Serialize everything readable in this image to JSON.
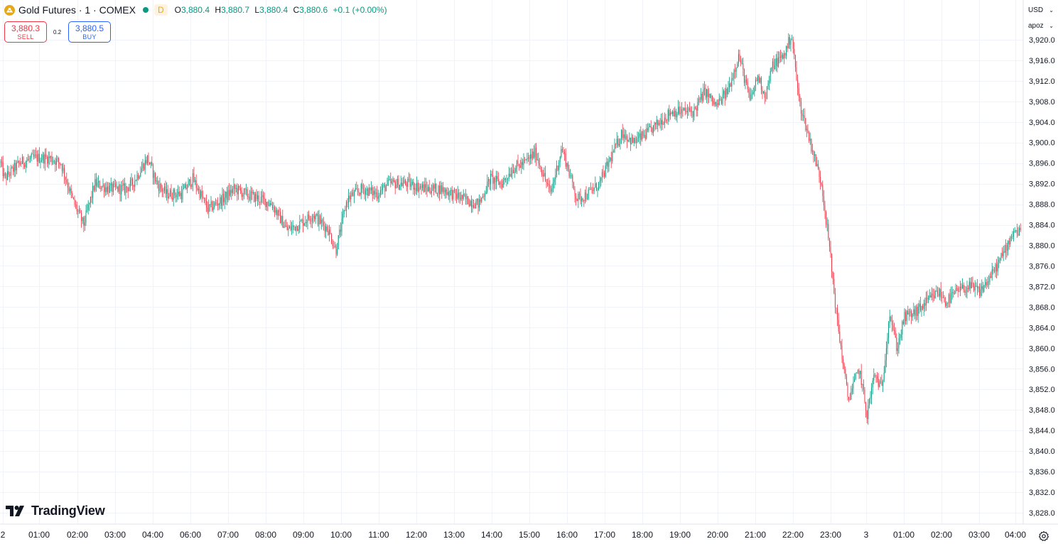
{
  "legend": {
    "title": "Gold Futures · 1 · COMEX",
    "timeframe_badge": "D",
    "open_key": "O",
    "open": "3,880.4",
    "high_key": "H",
    "high": "3,880.7",
    "low_key": "L",
    "low": "3,880.4",
    "close_key": "C",
    "close": "3,880.6",
    "change": "+0.1 (+0.00%)"
  },
  "trade": {
    "sell_price": "3,880.3",
    "sell_label": "SELL",
    "spread": "0.2",
    "buy_price": "3,880.5",
    "buy_label": "BUY"
  },
  "scale_controls": {
    "currency": "USD",
    "unit": "apoz"
  },
  "branding": {
    "logo_text": "TradingView"
  },
  "colors": {
    "up": "#089981",
    "down": "#f23645",
    "grid": "#f0f3fa",
    "text": "#131722",
    "brand_gold": "#e6a817"
  },
  "icons": {
    "symbol": "gold-bars-icon",
    "settings": "gear-icon",
    "logo": "tradingview-logo-icon"
  },
  "chart_data": {
    "type": "candlestick",
    "title": "Gold Futures · 1 · COMEX",
    "interval": "1 minute",
    "ylim": [
      3826,
      3922
    ],
    "y_ticks": [
      "3,828.0",
      "3,832.0",
      "3,836.0",
      "3,840.0",
      "3,844.0",
      "3,848.0",
      "3,852.0",
      "3,856.0",
      "3,860.0",
      "3,864.0",
      "3,868.0",
      "3,872.0",
      "3,876.0",
      "3,880.0",
      "3,884.0",
      "3,888.0",
      "3,892.0",
      "3,896.0",
      "3,900.0",
      "3,904.0",
      "3,908.0",
      "3,912.0",
      "3,916.0",
      "3,920.0"
    ],
    "x_ticks": [
      "2",
      "01:00",
      "02:00",
      "03:00",
      "04:00",
      "06:00",
      "07:00",
      "08:00",
      "09:00",
      "10:00",
      "11:00",
      "12:00",
      "13:00",
      "14:00",
      "15:00",
      "16:00",
      "17:00",
      "18:00",
      "19:00",
      "20:00",
      "21:00",
      "22:00",
      "23:00",
      "3",
      "01:00",
      "02:00",
      "03:00",
      "04:00"
    ],
    "price_path": {
      "x_hours": [
        0,
        0.1,
        0.5,
        0.9,
        1.3,
        1.6,
        1.9,
        2.2,
        2.5,
        2.9,
        3.3,
        3.5,
        3.9,
        4.15,
        4.4,
        4.8,
        5.1,
        5.5,
        5.9,
        6.2,
        6.5,
        6.9,
        7.2,
        7.6,
        7.9,
        8.3,
        8.7,
        8.9,
        9.2,
        9.6,
        10.0,
        10.3,
        10.8,
        11.3,
        11.7,
        12.0,
        12.3,
        12.7,
        13.0,
        13.3,
        13.6,
        13.9,
        14.2,
        14.6,
        14.9,
        15.3,
        15.6,
        15.9,
        16.2,
        16.5,
        16.8,
        17.2,
        17.5,
        17.8,
        18.1,
        18.4,
        18.7,
        19.0,
        19.3,
        19.6,
        19.9,
        20.1,
        20.3,
        20.5,
        20.8,
        21.0,
        21.2,
        21.5,
        21.8,
        22.0,
        22.2,
        22.5,
        22.8,
        23.0,
        23.2,
        23.4,
        23.6,
        23.8,
        24.0,
        24.3,
        24.6,
        24.9,
        25.1,
        25.4,
        25.7,
        26.0,
        26.3,
        26.6,
        26.9,
        27.2,
        27.5,
        27.8
      ],
      "close": [
        3896,
        3893,
        3896,
        3897,
        3897,
        3896,
        3889,
        3884,
        3892,
        3891,
        3891,
        3892,
        3897,
        3892,
        3890,
        3890,
        3893,
        3887,
        3889,
        3891,
        3890,
        3889,
        3888,
        3883,
        3884,
        3886,
        3883,
        3879,
        3889,
        3891,
        3890,
        3892,
        3892,
        3891,
        3891,
        3890,
        3889,
        3888,
        3893,
        3892,
        3895,
        3896,
        3898,
        3890,
        3899,
        3889,
        3890,
        3892,
        3897,
        3902,
        3900,
        3902,
        3904,
        3906,
        3906,
        3906,
        3910,
        3907,
        3910,
        3917,
        3908,
        3913,
        3909,
        3915,
        3917,
        3921,
        3908,
        3900,
        3892,
        3880,
        3866,
        3850,
        3856,
        3847,
        3855,
        3852,
        3867,
        3860,
        3866,
        3867,
        3869,
        3871,
        3869,
        3871,
        3872,
        3871,
        3874,
        3878,
        3883,
        3882,
        3881,
        3881
      ]
    }
  }
}
